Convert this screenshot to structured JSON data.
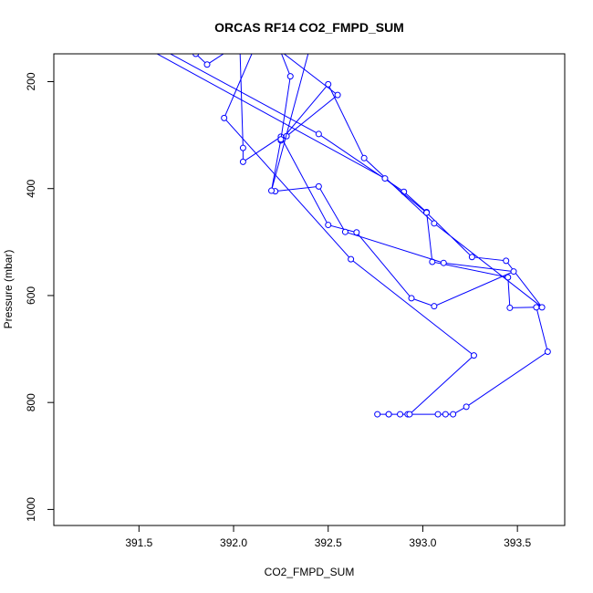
{
  "chart_data": {
    "type": "line",
    "title": "ORCAS RF14 CO2_FMPD_SUM",
    "xlabel": "CO2_FMPD_SUM",
    "ylabel": "Pressure (mbar)",
    "xlim": [
      391.05,
      393.75
    ],
    "ylim": [
      1030,
      148
    ],
    "y_reversed": true,
    "x_ticks": [
      391.5,
      392.0,
      392.5,
      393.0,
      393.5
    ],
    "x_tick_labels": [
      "391.5",
      "392.0",
      "392.5",
      "393.0",
      "393.5"
    ],
    "y_ticks": [
      200,
      400,
      600,
      800,
      1000
    ],
    "y_tick_labels": [
      "200",
      "400",
      "600",
      "800",
      "1000"
    ],
    "grid": false,
    "color": "#0000ff",
    "series": [
      {
        "x": [
          391.65,
          392.45,
          392.9,
          393.02,
          393.05,
          393.45,
          393.46,
          393.6,
          393.66,
          393.23,
          393.16,
          393.12,
          393.08,
          392.92,
          392.88,
          392.82,
          392.76,
          392.82,
          392.93,
          393.27,
          392.62,
          391.95,
          392.1
        ],
        "y": [
          145,
          298,
          406,
          444,
          537,
          566,
          623,
          622,
          705,
          808,
          822,
          822,
          822,
          822,
          822,
          822,
          822,
          822,
          822,
          712,
          532,
          268,
          145
        ]
      },
      {
        "x": [
          391.58,
          392.8,
          393.02,
          393.26,
          393.44,
          393.63,
          393.06,
          392.69,
          392.5,
          392.25,
          392.28,
          392.55,
          392.12,
          391.86,
          391.8
        ],
        "y": [
          145,
          381,
          445,
          528,
          535,
          622,
          465,
          343,
          205,
          310,
          302,
          225,
          108,
          168,
          148
        ]
      },
      {
        "x": [
          392.22,
          392.45,
          392.59,
          393.11,
          393.48,
          393.06,
          392.94,
          392.65,
          392.5,
          392.25,
          392.05,
          392.05,
          392.03
        ],
        "y": [
          405,
          396,
          481,
          539,
          555,
          620,
          605,
          482,
          468,
          303,
          350,
          324,
          100
        ]
      },
      {
        "x": [
          392.2,
          392.3,
          392.25,
          392.2,
          392.4
        ],
        "y": [
          100,
          190,
          308,
          404,
          140
        ]
      }
    ]
  }
}
